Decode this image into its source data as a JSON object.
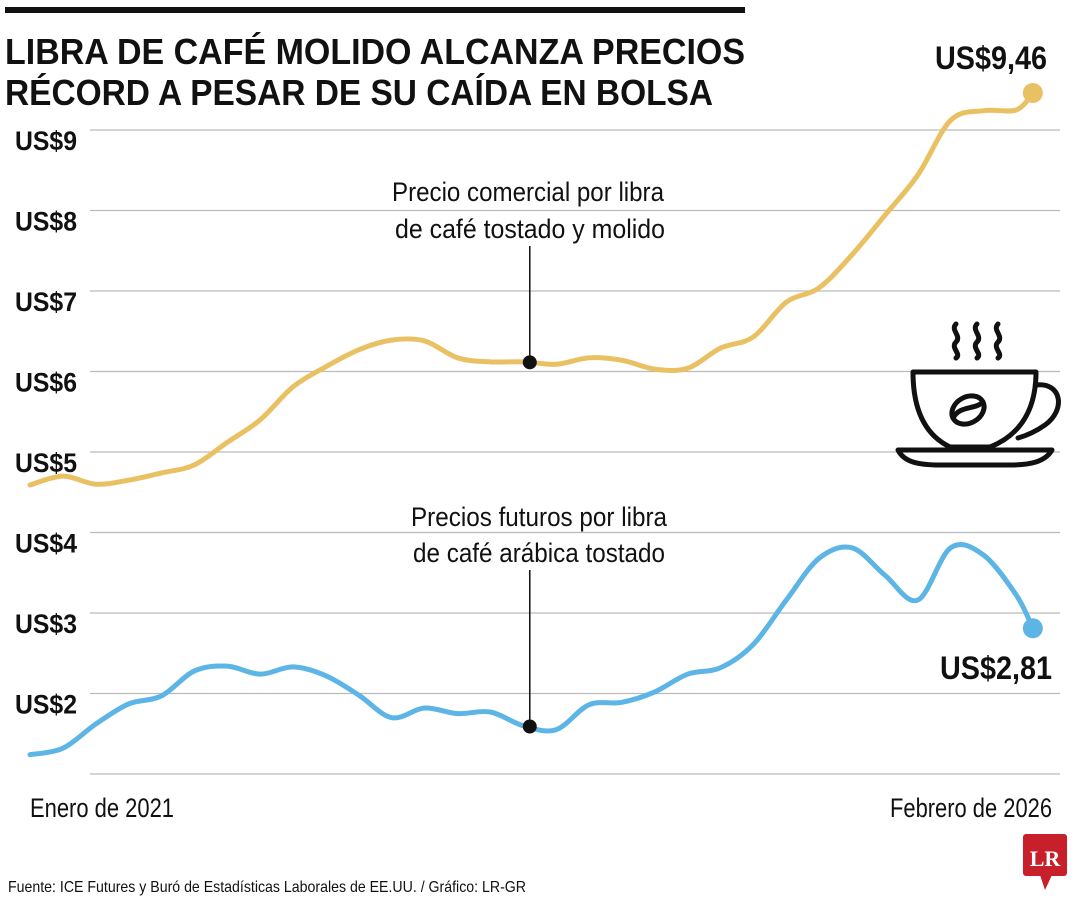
{
  "chart_data": {
    "type": "line",
    "title": "LIBRA DE CAFÉ MOLIDO ALCANZA PRECIOS",
    "title_line2": "RÉCORD A PESAR DE SU CAÍDA EN BOLSA",
    "xlabel": "",
    "ylabel": "",
    "x_start_label": "Enero de 2021",
    "x_end_label": "Febrero de 2026",
    "ylim": [
      1,
      9.6
    ],
    "grid": true,
    "y_ticks": [
      {
        "value": 2,
        "label": "US$2"
      },
      {
        "value": 3,
        "label": "US$3"
      },
      {
        "value": 4,
        "label": "US$4"
      },
      {
        "value": 5,
        "label": "US$5"
      },
      {
        "value": 6,
        "label": "US$6"
      },
      {
        "value": 7,
        "label": "US$7"
      },
      {
        "value": 8,
        "label": "US$8"
      },
      {
        "value": 9,
        "label": "US$9"
      }
    ],
    "gridlines": [
      1,
      2,
      3,
      4,
      5,
      6,
      7,
      8,
      9
    ],
    "x": [
      "2021-01",
      "2021-03",
      "2021-05",
      "2021-07",
      "2021-09",
      "2021-11",
      "2022-01",
      "2022-03",
      "2022-05",
      "2022-07",
      "2022-09",
      "2022-11",
      "2023-01",
      "2023-03",
      "2023-05",
      "2023-07",
      "2023-09",
      "2023-11",
      "2024-01",
      "2024-03",
      "2024-05",
      "2024-07",
      "2024-09",
      "2024-11",
      "2025-01",
      "2025-03",
      "2025-05",
      "2025-07",
      "2025-09",
      "2025-11",
      "2026-01",
      "2026-02"
    ],
    "series": [
      {
        "annotation": [
          "Precio comercial por libra",
          "de café tostado y molido"
        ],
        "annotation_date": "2023-07",
        "color": "#E9C163",
        "end_label": "US$9,46",
        "values": [
          4.59,
          4.7,
          4.6,
          4.65,
          4.74,
          4.84,
          5.12,
          5.4,
          5.81,
          6.06,
          6.27,
          6.39,
          6.38,
          6.17,
          6.12,
          6.12,
          6.09,
          6.17,
          6.14,
          6.03,
          6.04,
          6.29,
          6.43,
          6.86,
          7.04,
          7.45,
          7.94,
          8.44,
          9.12,
          9.24,
          9.25,
          9.46
        ]
      },
      {
        "annotation": [
          "Precios futuros por libra",
          "de café arábica tostado"
        ],
        "annotation_date": "2023-07",
        "color": "#5DB5E6",
        "end_label": "US$2,81",
        "values": [
          1.24,
          1.32,
          1.62,
          1.87,
          1.97,
          2.28,
          2.34,
          2.24,
          2.33,
          2.22,
          1.98,
          1.7,
          1.82,
          1.75,
          1.77,
          1.6,
          1.55,
          1.86,
          1.89,
          2.02,
          2.24,
          2.32,
          2.61,
          3.16,
          3.68,
          3.81,
          3.47,
          3.16,
          3.81,
          3.72,
          3.22,
          2.81
        ]
      }
    ],
    "annotation_date_value": 30.4
  },
  "footer": {
    "source": "Fuente: ICE Futures y Buró de Estadísticas Laborales de EE.UU. / Gráfico: LR-GR",
    "logo_text": "LR"
  },
  "icons": {
    "illustration": "coffee-cup-icon",
    "logo": "lr-logo-icon"
  },
  "colors": {
    "logo_red": "#C8202A",
    "grid": "#BBBBBB",
    "text": "#111111"
  }
}
